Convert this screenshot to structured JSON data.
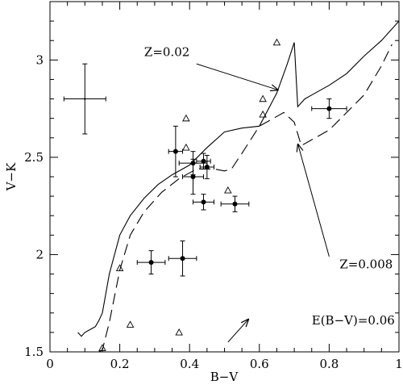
{
  "chart_data": {
    "type": "scatter",
    "title": "",
    "xlabel": "B−V",
    "ylabel": "V−K",
    "xlim": [
      0,
      1
    ],
    "ylim": [
      1.5,
      3.3
    ],
    "grid": false,
    "legend": "none",
    "x_ticks": [
      {
        "value": 0,
        "label": "0"
      },
      {
        "value": 0.2,
        "label": "0.2"
      },
      {
        "value": 0.4,
        "label": "0.4"
      },
      {
        "value": 0.6,
        "label": "0.6"
      },
      {
        "value": 0.8,
        "label": "0.8"
      },
      {
        "value": 1,
        "label": "1"
      }
    ],
    "y_ticks": [
      {
        "value": 1.5,
        "label": "1.5"
      },
      {
        "value": 2,
        "label": "2"
      },
      {
        "value": 2.5,
        "label": "2.5"
      },
      {
        "value": 3,
        "label": "3"
      }
    ],
    "points_with_errors": [
      {
        "x": 0.36,
        "y": 2.53,
        "xerr": 0.02,
        "yerr": 0.13
      },
      {
        "x": 0.41,
        "y": 2.47,
        "xerr": 0.04,
        "yerr": 0.06
      },
      {
        "x": 0.41,
        "y": 2.4,
        "xerr": 0.03,
        "yerr": 0.09
      },
      {
        "x": 0.44,
        "y": 2.48,
        "xerr": 0.02,
        "yerr": 0.04
      },
      {
        "x": 0.45,
        "y": 2.45,
        "xerr": 0.02,
        "yerr": 0.06
      },
      {
        "x": 0.44,
        "y": 2.27,
        "xerr": 0.03,
        "yerr": 0.04
      },
      {
        "x": 0.53,
        "y": 2.26,
        "xerr": 0.04,
        "yerr": 0.04
      },
      {
        "x": 0.29,
        "y": 1.96,
        "xerr": 0.04,
        "yerr": 0.06
      },
      {
        "x": 0.38,
        "y": 1.98,
        "xerr": 0.04,
        "yerr": 0.09
      },
      {
        "x": 0.8,
        "y": 2.75,
        "xerr": 0.05,
        "yerr": 0.05
      }
    ],
    "error_cross": {
      "x": 0.1,
      "y": 2.8,
      "xerr": 0.06,
      "yerr": 0.18
    },
    "triangles": [
      {
        "x": 0.65,
        "y": 3.09
      },
      {
        "x": 0.61,
        "y": 2.8
      },
      {
        "x": 0.61,
        "y": 2.72
      },
      {
        "x": 0.39,
        "y": 2.7
      },
      {
        "x": 0.39,
        "y": 2.55
      },
      {
        "x": 0.51,
        "y": 2.33
      },
      {
        "x": 0.2,
        "y": 1.93
      },
      {
        "x": 0.23,
        "y": 1.64
      },
      {
        "x": 0.37,
        "y": 1.6
      },
      {
        "x": 0.15,
        "y": 1.52
      }
    ],
    "series": [
      {
        "name": "Z=0.02",
        "style": "solid",
        "x": [
          0.08,
          0.09,
          0.1,
          0.12,
          0.13,
          0.14,
          0.15,
          0.17,
          0.2,
          0.23,
          0.27,
          0.31,
          0.35,
          0.4,
          0.45,
          0.5,
          0.55,
          0.6,
          0.65,
          0.68,
          0.7,
          0.71,
          0.73,
          0.75,
          0.8,
          0.85,
          0.9,
          0.95,
          1.0
        ],
        "y": [
          1.6,
          1.58,
          1.6,
          1.62,
          1.63,
          1.66,
          1.7,
          1.9,
          2.1,
          2.2,
          2.29,
          2.36,
          2.41,
          2.46,
          2.55,
          2.63,
          2.65,
          2.66,
          2.83,
          2.98,
          3.09,
          2.76,
          2.8,
          2.82,
          2.87,
          2.93,
          3.02,
          3.1,
          3.2
        ]
      },
      {
        "name": "Z=0.008",
        "style": "dashed",
        "x": [
          0.14,
          0.15,
          0.17,
          0.2,
          0.23,
          0.27,
          0.32,
          0.37,
          0.42,
          0.47,
          0.5,
          0.52,
          0.55,
          0.6,
          0.65,
          0.67,
          0.7,
          0.72,
          0.76,
          0.8,
          0.85,
          0.9,
          0.95,
          0.98
        ],
        "y": [
          1.5,
          1.51,
          1.65,
          1.92,
          2.1,
          2.22,
          2.32,
          2.39,
          2.44,
          2.44,
          2.43,
          2.44,
          2.52,
          2.66,
          2.71,
          2.73,
          2.68,
          2.56,
          2.6,
          2.64,
          2.73,
          2.82,
          2.97,
          3.08
        ]
      }
    ],
    "annotations": [
      {
        "text": "Z=0.02",
        "text_x": 0.27,
        "text_y": 3.02,
        "arrow_from_x": 0.42,
        "arrow_from_y": 2.98,
        "arrow_to_x": 0.655,
        "arrow_to_y": 2.845
      },
      {
        "text": "Z=0.008",
        "text_x": 0.83,
        "text_y": 1.93,
        "arrow_from_x": 0.8,
        "arrow_from_y": 1.99,
        "arrow_to_x": 0.71,
        "arrow_to_y": 2.57
      },
      {
        "text": "E(B−V)=0.06",
        "text_x": 0.75,
        "text_y": 1.64,
        "arrow_from_x": 0.51,
        "arrow_from_y": 1.55,
        "arrow_to_x": 0.57,
        "arrow_to_y": 1.67
      }
    ]
  }
}
